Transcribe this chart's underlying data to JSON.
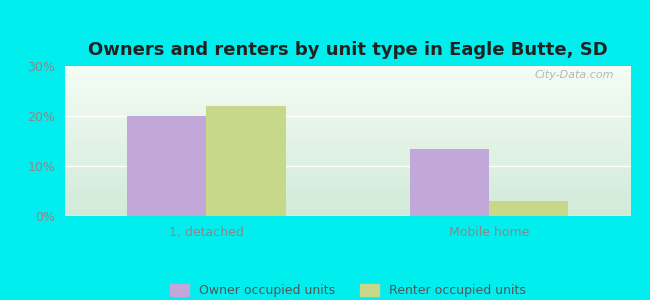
{
  "title": "Owners and renters by unit type in Eagle Butte, SD",
  "categories": [
    "1, detached",
    "Mobile home"
  ],
  "owner_values": [
    20,
    13.5
  ],
  "renter_values": [
    22,
    3
  ],
  "owner_color": "#c2a8d8",
  "renter_color": "#c8d88a",
  "ylim": [
    0,
    30
  ],
  "yticks": [
    0,
    10,
    20,
    30
  ],
  "ytick_labels": [
    "0%",
    "10%",
    "20%",
    "30%"
  ],
  "bar_width": 0.28,
  "background_color": "#00eeee",
  "legend_labels": [
    "Owner occupied units",
    "Renter occupied units"
  ],
  "watermark": "City-Data.com",
  "title_fontsize": 13,
  "axis_fontsize": 9,
  "legend_fontsize": 9
}
